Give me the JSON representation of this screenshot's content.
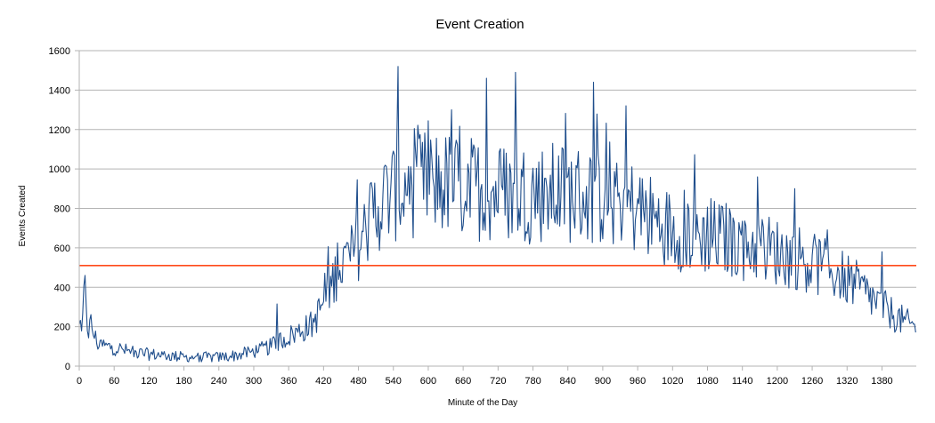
{
  "chart_data": {
    "type": "line",
    "title": "Event Creation",
    "xlabel": "Minute of the Day",
    "ylabel": "Events Created",
    "xlim": [
      0,
      1439
    ],
    "ylim": [
      0,
      1600
    ],
    "x_ticks": [
      0,
      60,
      120,
      180,
      240,
      300,
      360,
      420,
      480,
      540,
      600,
      660,
      720,
      780,
      840,
      900,
      960,
      1020,
      1080,
      1140,
      1200,
      1260,
      1320,
      1380
    ],
    "y_ticks": [
      0,
      200,
      400,
      600,
      800,
      1000,
      1200,
      1400,
      1600
    ],
    "grid": "horizontal",
    "legend": "none",
    "series": [
      {
        "color": "#1f4e8c",
        "x": [
          0,
          5,
          10,
          15,
          20,
          30,
          45,
          60,
          90,
          120,
          150,
          180,
          210,
          240,
          270,
          300,
          330,
          345,
          360,
          380,
          400,
          410,
          420,
          435,
          445,
          460,
          470,
          480,
          490,
          500,
          510,
          520,
          530,
          540,
          550,
          560,
          580,
          600,
          620,
          640,
          660,
          680,
          700,
          720,
          740,
          760,
          780,
          800,
          820,
          840,
          860,
          880,
          900,
          920,
          940,
          960,
          980,
          1000,
          1020,
          1040,
          1060,
          1080,
          1100,
          1120,
          1140,
          1160,
          1180,
          1200,
          1220,
          1240,
          1260,
          1280,
          1300,
          1320,
          1340,
          1360,
          1380,
          1400,
          1420,
          1439
        ],
        "values": [
          190,
          150,
          460,
          170,
          210,
          120,
          100,
          95,
          70,
          60,
          55,
          45,
          45,
          45,
          55,
          75,
          100,
          130,
          150,
          180,
          210,
          260,
          330,
          420,
          500,
          540,
          560,
          620,
          680,
          750,
          800,
          830,
          860,
          880,
          900,
          910,
          920,
          930,
          930,
          920,
          910,
          900,
          895,
          885,
          880,
          880,
          880,
          880,
          880,
          880,
          870,
          860,
          860,
          850,
          820,
          800,
          760,
          720,
          690,
          680,
          670,
          660,
          650,
          640,
          620,
          610,
          600,
          580,
          560,
          550,
          520,
          500,
          470,
          440,
          400,
          350,
          300,
          260,
          220,
          200
        ],
        "spikes": [
          [
            10,
            460
          ],
          [
            340,
            315
          ],
          [
            445,
            625
          ],
          [
            478,
            945
          ],
          [
            549,
            1520
          ],
          [
            640,
            1300
          ],
          [
            700,
            1460
          ],
          [
            750,
            1490
          ],
          [
            885,
            1440
          ],
          [
            940,
            1320
          ],
          [
            1166,
            960
          ],
          [
            1230,
            900
          ],
          [
            1380,
            580
          ]
        ]
      },
      {
        "color": "#ff4a1a",
        "x": [
          0,
          1439
        ],
        "values": [
          510,
          510
        ]
      }
    ]
  }
}
